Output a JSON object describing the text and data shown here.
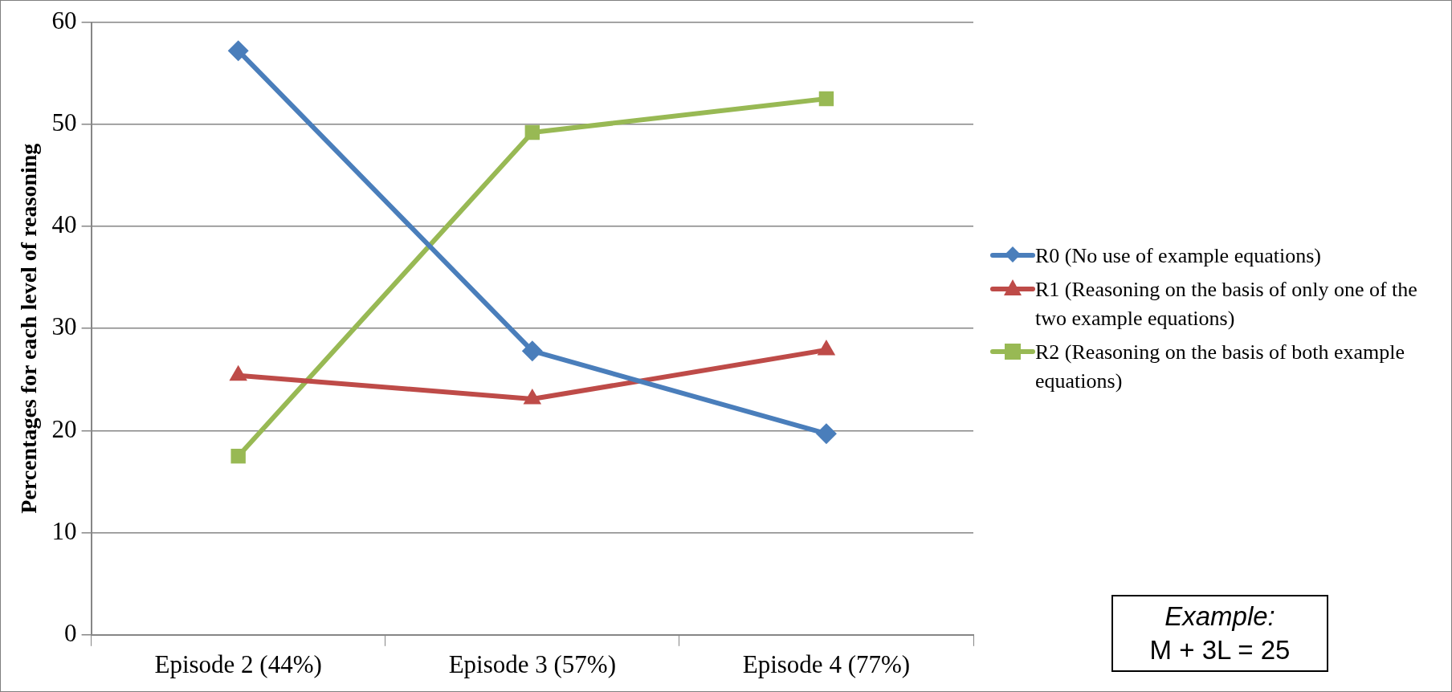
{
  "chart_data": {
    "type": "line",
    "ylabel": "Percentages for each level of reasoning",
    "categories": [
      "Episode 2 (44%)",
      "Episode 3 (57%)",
      "Episode 4 (77%)"
    ],
    "series": [
      {
        "name": "R0 (No use of example equations)",
        "color": "#4a7ebb",
        "marker": "diamond",
        "values": [
          57.2,
          27.8,
          19.7
        ]
      },
      {
        "name": "R1 (Reasoning on the basis of only one of the two example equations)",
        "color": "#be4b48",
        "marker": "triangle",
        "values": [
          25.4,
          23.1,
          27.9
        ]
      },
      {
        "name": "R2 (Reasoning on the basis of both example equations)",
        "color": "#98b954",
        "marker": "square",
        "values": [
          17.5,
          49.2,
          52.5
        ]
      }
    ],
    "ylim": [
      0,
      60
    ],
    "yticks": [
      0,
      10,
      20,
      30,
      40,
      50,
      60
    ],
    "grid": "y",
    "legend": "right",
    "line_style": "solid",
    "annotations": [
      "Example:",
      "M + 3L = 25"
    ]
  }
}
